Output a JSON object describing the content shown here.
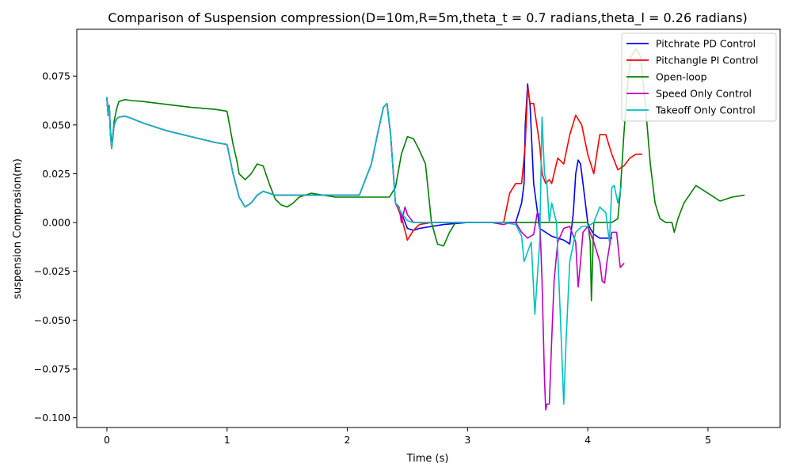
{
  "chart_data": {
    "type": "line",
    "title": "Comparison of Suspension compression(D=10m,R=5m,theta_t = 0.7 radians,theta_l = 0.26 radians)",
    "xlabel": "Time (s)",
    "ylabel": "suspension Comprasion(m)",
    "xlim": [
      -0.25,
      5.6
    ],
    "ylim": [
      -0.105,
      0.099
    ],
    "xticks": [
      0,
      1,
      2,
      3,
      4,
      5
    ],
    "xtick_labels": [
      "0",
      "1",
      "2",
      "3",
      "4",
      "5"
    ],
    "yticks": [
      -0.1,
      -0.075,
      -0.05,
      -0.025,
      0.0,
      0.025,
      0.05,
      0.075
    ],
    "ytick_labels": [
      "−0.100",
      "−0.075",
      "−0.050",
      "−0.025",
      "0.000",
      "0.025",
      "0.050",
      "0.075"
    ],
    "grid": false,
    "legend_position": "top-right",
    "series": [
      {
        "name": "Pitchrate PD Control",
        "color": "#0000ff",
        "x": [
          0,
          0.01,
          0.02,
          0.03,
          0.04,
          0.05,
          0.06,
          0.08,
          0.1,
          0.15,
          0.2,
          0.3,
          0.5,
          0.7,
          0.9,
          1.0,
          1.05,
          1.1,
          1.15,
          1.2,
          1.25,
          1.3,
          1.35,
          1.4,
          1.5,
          1.7,
          1.9,
          2.1,
          2.2,
          2.25,
          2.3,
          2.33,
          2.36,
          2.4,
          2.45,
          2.5,
          2.55,
          2.6,
          2.8,
          3.0,
          3.3,
          3.4,
          3.45,
          3.47,
          3.48,
          3.5,
          3.52,
          3.55,
          3.6,
          3.7,
          3.8,
          3.85,
          3.88,
          3.9,
          3.92,
          3.94,
          3.96,
          3.98,
          4.0,
          4.02,
          4.05,
          4.1,
          4.15,
          4.2
        ],
        "y": [
          0.064,
          0.055,
          0.06,
          0.045,
          0.038,
          0.044,
          0.05,
          0.053,
          0.054,
          0.0545,
          0.0535,
          0.051,
          0.047,
          0.044,
          0.041,
          0.04,
          0.025,
          0.013,
          0.008,
          0.01,
          0.014,
          0.016,
          0.015,
          0.014,
          0.014,
          0.014,
          0.014,
          0.014,
          0.03,
          0.045,
          0.059,
          0.061,
          0.045,
          0.01,
          0.005,
          -0.003,
          -0.004,
          -0.003,
          -0.001,
          0.0,
          0.0,
          0.0,
          0.01,
          0.02,
          0.05,
          0.071,
          0.06,
          0.02,
          -0.003,
          -0.007,
          -0.009,
          -0.011,
          0.005,
          0.025,
          0.032,
          0.03,
          0.02,
          0.01,
          0.0,
          -0.003,
          -0.006,
          -0.008,
          -0.008,
          -0.008
        ]
      },
      {
        "name": "Pitchangle PI Control",
        "color": "#ff0000",
        "x": [
          0,
          0.01,
          0.02,
          0.03,
          0.04,
          0.05,
          0.06,
          0.08,
          0.1,
          0.15,
          0.2,
          0.3,
          0.5,
          0.7,
          0.9,
          1.0,
          1.05,
          1.1,
          1.15,
          1.2,
          1.25,
          1.3,
          1.35,
          1.4,
          1.5,
          1.7,
          1.9,
          2.1,
          2.2,
          2.25,
          2.3,
          2.33,
          2.36,
          2.4,
          2.45,
          2.5,
          2.55,
          2.6,
          2.7,
          2.9,
          3.1,
          3.3,
          3.35,
          3.4,
          3.45,
          3.48,
          3.5,
          3.52,
          3.55,
          3.6,
          3.62,
          3.65,
          3.68,
          3.7,
          3.75,
          3.8,
          3.85,
          3.9,
          3.95,
          4.0,
          4.05,
          4.1,
          4.15,
          4.2,
          4.25,
          4.3,
          4.35,
          4.4,
          4.45
        ],
        "y": [
          0.064,
          0.055,
          0.06,
          0.045,
          0.038,
          0.044,
          0.05,
          0.053,
          0.054,
          0.0545,
          0.0535,
          0.051,
          0.047,
          0.044,
          0.041,
          0.04,
          0.025,
          0.013,
          0.008,
          0.01,
          0.014,
          0.016,
          0.015,
          0.014,
          0.014,
          0.014,
          0.014,
          0.014,
          0.03,
          0.045,
          0.059,
          0.061,
          0.045,
          0.01,
          0.003,
          -0.009,
          -0.004,
          -0.001,
          0.0,
          0.0,
          0.0,
          0.0,
          0.015,
          0.02,
          0.02,
          0.04,
          0.069,
          0.061,
          0.061,
          0.04,
          0.025,
          0.02,
          0.022,
          0.02,
          0.033,
          0.03,
          0.045,
          0.055,
          0.05,
          0.035,
          0.025,
          0.045,
          0.045,
          0.035,
          0.027,
          0.029,
          0.033,
          0.035,
          0.035
        ]
      },
      {
        "name": "Open-loop",
        "color": "#008000",
        "x": [
          0,
          0.01,
          0.02,
          0.03,
          0.04,
          0.05,
          0.06,
          0.08,
          0.1,
          0.15,
          0.2,
          0.3,
          0.5,
          0.7,
          0.9,
          1.0,
          1.02,
          1.05,
          1.08,
          1.1,
          1.15,
          1.2,
          1.25,
          1.3,
          1.35,
          1.4,
          1.45,
          1.5,
          1.55,
          1.6,
          1.7,
          1.8,
          1.9,
          2.0,
          2.1,
          2.2,
          2.3,
          2.35,
          2.4,
          2.45,
          2.5,
          2.55,
          2.6,
          2.65,
          2.7,
          2.75,
          2.8,
          2.85,
          2.9,
          2.95,
          3.0,
          3.5,
          3.9,
          3.95,
          4.0,
          4.02,
          4.03,
          4.05,
          4.1,
          4.2,
          4.25,
          4.27,
          4.3,
          4.33,
          4.36,
          4.4,
          4.44,
          4.48,
          4.52,
          4.56,
          4.6,
          4.65,
          4.7,
          4.72,
          4.75,
          4.8,
          4.9,
          5.0,
          5.1,
          5.2,
          5.3
        ],
        "y": [
          0.064,
          0.058,
          0.06,
          0.047,
          0.04,
          0.045,
          0.052,
          0.058,
          0.062,
          0.063,
          0.0625,
          0.062,
          0.0605,
          0.059,
          0.058,
          0.057,
          0.05,
          0.04,
          0.032,
          0.025,
          0.022,
          0.025,
          0.03,
          0.029,
          0.02,
          0.012,
          0.009,
          0.008,
          0.01,
          0.013,
          0.015,
          0.014,
          0.013,
          0.013,
          0.013,
          0.013,
          0.013,
          0.013,
          0.018,
          0.035,
          0.044,
          0.043,
          0.037,
          0.03,
          0.0,
          -0.011,
          -0.012,
          -0.005,
          0.0,
          0.0,
          0.0,
          0.0,
          0.0,
          0.0,
          0.0,
          -0.01,
          -0.04,
          0.0,
          0.0,
          0.0,
          0.002,
          0.015,
          0.045,
          0.07,
          0.085,
          0.089,
          0.085,
          0.06,
          0.03,
          0.01,
          0.002,
          0.0,
          0.0,
          -0.005,
          0.002,
          0.01,
          0.019,
          0.015,
          0.011,
          0.013,
          0.014
        ]
      },
      {
        "name": "Speed Only Control",
        "color": "#bf00bf",
        "x": [
          0,
          0.01,
          0.02,
          0.03,
          0.04,
          0.05,
          0.06,
          0.08,
          0.1,
          0.15,
          0.2,
          0.3,
          0.5,
          0.7,
          0.9,
          1.0,
          1.05,
          1.1,
          1.15,
          1.2,
          1.25,
          1.3,
          1.35,
          1.4,
          1.5,
          1.7,
          1.9,
          2.1,
          2.2,
          2.25,
          2.3,
          2.33,
          2.36,
          2.4,
          2.43,
          2.45,
          2.48,
          2.5,
          2.55,
          2.6,
          2.8,
          3.0,
          3.2,
          3.3,
          3.35,
          3.4,
          3.45,
          3.5,
          3.55,
          3.58,
          3.6,
          3.62,
          3.64,
          3.65,
          3.66,
          3.68,
          3.7,
          3.72,
          3.75,
          3.8,
          3.85,
          3.9,
          3.92,
          3.94,
          3.96,
          4.0,
          4.05,
          4.1,
          4.12,
          4.14,
          4.16,
          4.2,
          4.24,
          4.27,
          4.3
        ],
        "y": [
          0.064,
          0.055,
          0.06,
          0.045,
          0.038,
          0.044,
          0.05,
          0.053,
          0.054,
          0.0545,
          0.0535,
          0.051,
          0.047,
          0.044,
          0.041,
          0.04,
          0.025,
          0.013,
          0.008,
          0.01,
          0.014,
          0.016,
          0.015,
          0.014,
          0.014,
          0.014,
          0.014,
          0.014,
          0.03,
          0.045,
          0.059,
          0.061,
          0.045,
          0.01,
          0.008,
          0.0,
          0.008,
          0.004,
          0.0,
          0.0,
          0.0,
          0.0,
          0.0,
          -0.001,
          0.0,
          0.0,
          -0.005,
          -0.008,
          -0.006,
          0.005,
          0.004,
          -0.03,
          -0.08,
          -0.096,
          -0.093,
          -0.093,
          -0.06,
          -0.03,
          -0.01,
          -0.003,
          -0.002,
          -0.01,
          -0.033,
          -0.02,
          -0.005,
          -0.002,
          -0.01,
          -0.02,
          -0.03,
          -0.031,
          -0.02,
          -0.005,
          -0.005,
          -0.023,
          -0.021
        ]
      },
      {
        "name": "Takeoff Only Control",
        "color": "#00bfbf",
        "x": [
          0,
          0.01,
          0.02,
          0.03,
          0.04,
          0.05,
          0.06,
          0.08,
          0.1,
          0.15,
          0.2,
          0.3,
          0.5,
          0.7,
          0.9,
          1.0,
          1.05,
          1.1,
          1.15,
          1.2,
          1.25,
          1.3,
          1.35,
          1.4,
          1.5,
          1.7,
          1.9,
          2.1,
          2.2,
          2.25,
          2.3,
          2.33,
          2.36,
          2.4,
          2.45,
          2.5,
          2.55,
          2.6,
          2.8,
          3.0,
          3.2,
          3.3,
          3.4,
          3.45,
          3.47,
          3.5,
          3.53,
          3.56,
          3.6,
          3.62,
          3.64,
          3.66,
          3.68,
          3.7,
          3.72,
          3.74,
          3.76,
          3.78,
          3.8,
          3.82,
          3.85,
          3.9,
          3.95,
          4.0,
          4.05,
          4.1,
          4.15,
          4.18,
          4.2,
          4.22,
          4.25,
          4.28
        ],
        "y": [
          0.064,
          0.055,
          0.06,
          0.045,
          0.038,
          0.044,
          0.05,
          0.053,
          0.054,
          0.0545,
          0.0535,
          0.051,
          0.047,
          0.044,
          0.041,
          0.04,
          0.025,
          0.013,
          0.008,
          0.01,
          0.014,
          0.016,
          0.015,
          0.014,
          0.014,
          0.014,
          0.014,
          0.014,
          0.03,
          0.045,
          0.059,
          0.061,
          0.045,
          0.01,
          0.005,
          0.001,
          0.0,
          0.0,
          0.0,
          0.0,
          0.0,
          0.0,
          -0.001,
          -0.007,
          -0.02,
          -0.015,
          -0.01,
          -0.047,
          -0.01,
          0.054,
          0.025,
          0.02,
          0.0,
          0.01,
          0.005,
          0.0,
          -0.03,
          -0.06,
          -0.093,
          -0.06,
          -0.02,
          -0.005,
          -0.002,
          -0.002,
          0.0,
          0.008,
          0.005,
          -0.01,
          0.018,
          0.019,
          0.01,
          0.019
        ]
      }
    ]
  }
}
